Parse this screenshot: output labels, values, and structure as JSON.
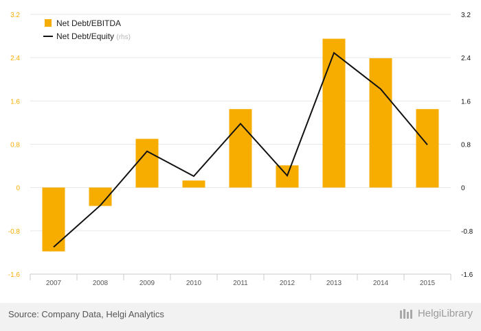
{
  "chart_data": {
    "type": "bar",
    "categories": [
      "2007",
      "2008",
      "2009",
      "2010",
      "2011",
      "2012",
      "2013",
      "2014",
      "2015"
    ],
    "series": [
      {
        "name": "Net Debt/EBITDA",
        "type": "bar",
        "axis": "left",
        "color": "#F7AD00",
        "values": [
          -1.18,
          -0.34,
          0.9,
          0.13,
          1.45,
          0.41,
          2.75,
          2.39,
          1.45
        ]
      },
      {
        "name": "Net Debt/Equity",
        "legend_suffix": "(rhs)",
        "type": "line",
        "axis": "right",
        "color": "#111111",
        "values": [
          -1.1,
          -0.33,
          0.67,
          0.21,
          1.18,
          0.22,
          2.49,
          1.82,
          0.79
        ]
      }
    ],
    "y_left": {
      "min": -1.6,
      "max": 3.2,
      "ticks": [
        "3.2",
        "2.4",
        "1.6",
        "0.8",
        "0",
        "-0.8",
        "-1.6"
      ],
      "tick_color": "#F7AD00"
    },
    "y_right": {
      "min": -1.6,
      "max": 3.2,
      "ticks": [
        "3.2",
        "2.4",
        "1.6",
        "0.8",
        "0",
        "-0.8",
        "-1.6"
      ],
      "tick_color": "#111111"
    },
    "grid": true,
    "legend_position": "top-left",
    "title": "",
    "xlabel": "",
    "ylabel": ""
  },
  "footer": {
    "source": "Source: Company Data, Helgi Analytics",
    "brand": "HelgiLibrary"
  }
}
